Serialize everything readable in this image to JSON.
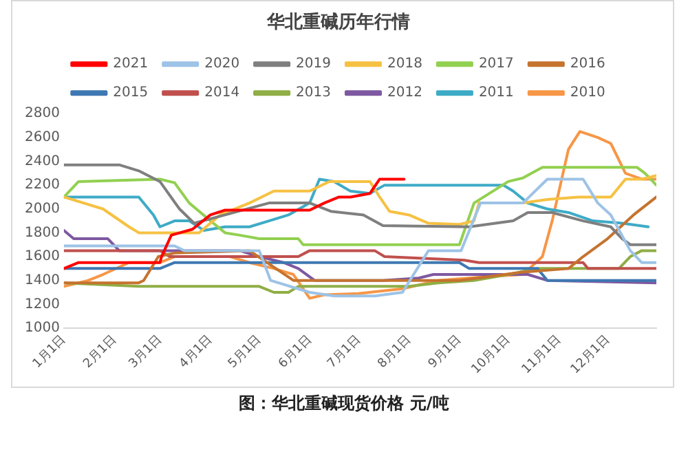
{
  "chart_data": {
    "type": "line",
    "title": "华北重碱历年行情",
    "annotations": [
      "图：华北重碱现货价格 元/吨"
    ],
    "xlim": [
      "--01-01",
      "--12-31"
    ],
    "xticks": [
      {
        "value": "--01-01",
        "label": "1月1日"
      },
      {
        "value": "--02-01",
        "label": "2月1日"
      },
      {
        "value": "--03-01",
        "label": "3月1日"
      },
      {
        "value": "--04-01",
        "label": "4月1日"
      },
      {
        "value": "--05-01",
        "label": "5月1日"
      },
      {
        "value": "--06-01",
        "label": "6月1日"
      },
      {
        "value": "--07-01",
        "label": "7月1日"
      },
      {
        "value": "--08-01",
        "label": "8月1日"
      },
      {
        "value": "--09-01",
        "label": "9月1日"
      },
      {
        "value": "--10-01",
        "label": "10月1日"
      },
      {
        "value": "--11-01",
        "label": "11月1日"
      },
      {
        "value": "--12-01",
        "label": "12月1日"
      }
    ],
    "ylim": [
      1000,
      2800
    ],
    "yticks": [
      1000,
      1200,
      1400,
      1600,
      1800,
      2000,
      2200,
      2400,
      2600,
      2800
    ],
    "grid": false,
    "legend": "top",
    "marker": "none",
    "line_style": "solid",
    "series": [
      {
        "name": "2021",
        "color": "#ff0000",
        "x": [
          "--01-01",
          "--01-10",
          "--03-01",
          "--03-02",
          "--03-08",
          "--03-21",
          "--04-01",
          "--04-10",
          "--06-01",
          "--06-10",
          "--06-19",
          "--06-26",
          "--07-08",
          "--07-14",
          "--07-29"
        ],
        "values": [
          1500,
          1550,
          1550,
          1600,
          1780,
          1830,
          1950,
          1990,
          1990,
          2050,
          2100,
          2100,
          2130,
          2250,
          2250
        ]
      },
      {
        "name": "2020",
        "color": "#9dc3e6",
        "x": [
          "--01-01",
          "--03-10",
          "--03-16",
          "--05-01",
          "--05-08",
          "--06-01",
          "--06-16",
          "--07-11",
          "--07-28",
          "--08-13",
          "--09-02",
          "--09-14",
          "--10-10",
          "--10-25",
          "--11-16",
          "--11-25",
          "--12-03",
          "--12-15",
          "--12-22",
          "--12-31"
        ],
        "values": [
          1690,
          1690,
          1650,
          1650,
          1400,
          1300,
          1270,
          1270,
          1300,
          1650,
          1650,
          2050,
          2050,
          2250,
          2250,
          2050,
          1950,
          1650,
          1550,
          1550
        ]
      },
      {
        "name": "2019",
        "color": "#7f7f7f",
        "x": [
          "--01-01",
          "--02-04",
          "--02-16",
          "--03-01",
          "--03-13",
          "--03-22",
          "--04-10",
          "--05-07",
          "--06-01",
          "--06-14",
          "--07-04",
          "--07-16",
          "--09-07",
          "--10-04",
          "--10-13",
          "--10-28",
          "--11-16",
          "--12-03",
          "--12-10",
          "--12-15",
          "--12-31"
        ],
        "values": [
          2370,
          2370,
          2320,
          2230,
          2000,
          1880,
          1950,
          2050,
          2050,
          1980,
          1950,
          1860,
          1850,
          1900,
          1970,
          1970,
          1900,
          1850,
          1750,
          1700,
          1700
        ]
      },
      {
        "name": "2018",
        "color": "#f6c142",
        "x": [
          "--01-01",
          "--01-25",
          "--02-10",
          "--02-16",
          "--03-25",
          "--04-07",
          "--04-25",
          "--05-10",
          "--06-01",
          "--06-13",
          "--07-08",
          "--07-14",
          "--07-20",
          "--08-01",
          "--08-13",
          "--09-01",
          "--09-10",
          "--09-13",
          "--10-10",
          "--10-25",
          "--11-13",
          "--12-03",
          "--12-12",
          "--12-22",
          "--12-31"
        ],
        "values": [
          2100,
          2000,
          1850,
          1800,
          1800,
          1950,
          2050,
          2150,
          2150,
          2230,
          2230,
          2100,
          1980,
          1950,
          1880,
          1870,
          1900,
          2050,
          2050,
          2080,
          2100,
          2100,
          2250,
          2250,
          2280
        ]
      },
      {
        "name": "2017",
        "color": "#92d050",
        "x": [
          "--01-01",
          "--01-10",
          "--03-01",
          "--03-10",
          "--03-19",
          "--04-01",
          "--04-10",
          "--04-19",
          "--05-01",
          "--05-25",
          "--05-28",
          "--09-01",
          "--09-10",
          "--10-01",
          "--10-10",
          "--10-22",
          "--12-19",
          "--12-24",
          "--12-31"
        ],
        "values": [
          2100,
          2230,
          2250,
          2220,
          2050,
          1900,
          1800,
          1780,
          1750,
          1750,
          1700,
          1700,
          2050,
          2230,
          2260,
          2350,
          2350,
          2300,
          2200
        ]
      },
      {
        "name": "2016",
        "color": "#c5732f",
        "x": [
          "--01-01",
          "--02-16",
          "--02-19",
          "--02-28",
          "--03-10",
          "--04-25",
          "--05-22",
          "--06-16",
          "--09-01",
          "--10-10",
          "--11-07",
          "--11-16",
          "--12-01",
          "--12-17",
          "--12-31"
        ],
        "values": [
          1380,
          1380,
          1400,
          1600,
          1630,
          1650,
          1400,
          1400,
          1400,
          1470,
          1500,
          1600,
          1750,
          1950,
          2100
        ]
      },
      {
        "name": "2015",
        "color": "#3e78b2",
        "x": [
          "--01-01",
          "--03-01",
          "--03-10",
          "--09-01",
          "--09-07",
          "--10-19",
          "--10-25",
          "--12-31"
        ],
        "values": [
          1500,
          1500,
          1550,
          1550,
          1500,
          1500,
          1400,
          1400
        ]
      },
      {
        "name": "2014",
        "color": "#c0504d",
        "x": [
          "--01-01",
          "--03-01",
          "--03-07",
          "--05-25",
          "--06-01",
          "--07-11",
          "--07-17",
          "--09-04",
          "--09-13",
          "--11-16",
          "--11-19",
          "--12-31"
        ],
        "values": [
          1650,
          1650,
          1600,
          1600,
          1650,
          1650,
          1600,
          1570,
          1550,
          1550,
          1500,
          1500
        ]
      },
      {
        "name": "2013",
        "color": "#8fae45",
        "x": [
          "--01-01",
          "--02-16",
          "--05-01",
          "--05-10",
          "--05-19",
          "--05-25",
          "--08-01",
          "--08-19",
          "--09-10",
          "--10-01",
          "--10-19",
          "--12-08",
          "--12-15",
          "--12-22",
          "--12-31"
        ],
        "values": [
          1380,
          1350,
          1350,
          1300,
          1300,
          1350,
          1350,
          1380,
          1400,
          1450,
          1500,
          1500,
          1600,
          1650,
          1650
        ]
      },
      {
        "name": "2012",
        "color": "#7e58a0",
        "x": [
          "--01-01",
          "--01-07",
          "--01-28",
          "--02-04",
          "--04-19",
          "--05-01",
          "--05-16",
          "--05-25",
          "--06-04",
          "--07-16",
          "--08-07",
          "--08-16",
          "--10-13",
          "--10-25",
          "--12-31"
        ],
        "values": [
          1820,
          1750,
          1750,
          1650,
          1650,
          1600,
          1550,
          1500,
          1400,
          1400,
          1420,
          1450,
          1450,
          1400,
          1380
        ]
      },
      {
        "name": "2011",
        "color": "#3eabc6",
        "x": [
          "--01-01",
          "--02-16",
          "--02-25",
          "--03-01",
          "--03-10",
          "--03-19",
          "--03-28",
          "--04-10",
          "--04-25",
          "--05-07",
          "--05-19",
          "--06-01",
          "--06-07",
          "--06-16",
          "--06-26",
          "--07-08",
          "--07-17",
          "--09-28",
          "--10-04",
          "--10-13",
          "--10-25",
          "--11-07",
          "--11-22",
          "--12-10",
          "--12-26"
        ],
        "values": [
          2100,
          2100,
          1950,
          1850,
          1900,
          1900,
          1820,
          1850,
          1850,
          1900,
          1950,
          2050,
          2250,
          2230,
          2150,
          2130,
          2200,
          2200,
          2150,
          2050,
          2000,
          1970,
          1900,
          1880,
          1850
        ]
      },
      {
        "name": "2010",
        "color": "#f79646",
        "x": [
          "--01-01",
          "--01-16",
          "--01-25",
          "--02-10",
          "--03-01",
          "--03-10",
          "--04-13",
          "--04-25",
          "--05-10",
          "--05-22",
          "--06-01",
          "--06-10",
          "--07-01",
          "--07-28",
          "--08-19",
          "--09-16",
          "--10-10",
          "--10-22",
          "--10-28",
          "--11-07",
          "--11-14",
          "--11-25",
          "--12-03",
          "--12-12",
          "--12-22",
          "--12-31"
        ],
        "values": [
          1350,
          1400,
          1450,
          1550,
          1550,
          1600,
          1600,
          1550,
          1500,
          1450,
          1250,
          1280,
          1290,
          1330,
          1400,
          1430,
          1450,
          1600,
          1900,
          2500,
          2650,
          2600,
          2550,
          2300,
          2250,
          2250
        ]
      }
    ]
  }
}
